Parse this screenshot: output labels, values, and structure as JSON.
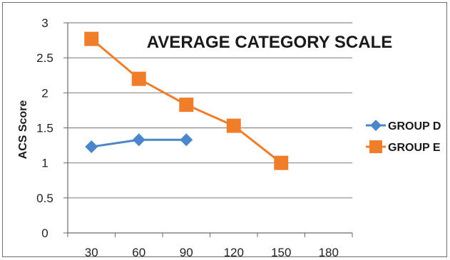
{
  "chart_data": {
    "type": "line",
    "title": "AVERAGE CATEGORY SCALE",
    "xlabel": "",
    "ylabel": "ACS Score",
    "x": [
      30,
      60,
      90,
      120,
      150,
      180
    ],
    "ylim": [
      0,
      3
    ],
    "yticks": [
      0,
      0.5,
      1,
      1.5,
      2,
      2.5,
      3
    ],
    "grid": "horizontal",
    "legend_position": "right",
    "series": [
      {
        "name": "GROUP D",
        "color": "#4a86c8",
        "marker": "diamond",
        "points": [
          [
            30,
            1.23
          ],
          [
            60,
            1.33
          ],
          [
            90,
            1.33
          ]
        ]
      },
      {
        "name": "GROUP E",
        "color": "#f07d2a",
        "marker": "square",
        "points": [
          [
            30,
            2.77
          ],
          [
            60,
            2.2
          ],
          [
            90,
            1.83
          ],
          [
            120,
            1.53
          ],
          [
            150,
            1.0
          ]
        ]
      }
    ]
  }
}
